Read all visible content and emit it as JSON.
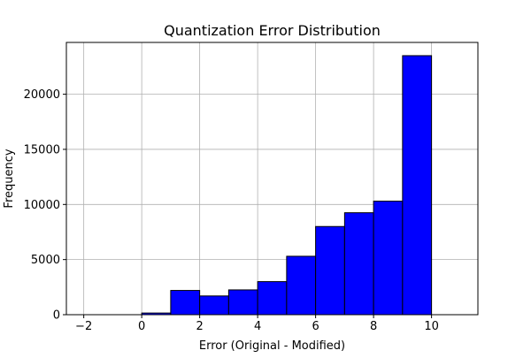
{
  "chart_data": {
    "type": "bar",
    "title": "Quantization Error Distribution",
    "xlabel": "Error (Original - Modified)",
    "ylabel": "Frequency",
    "xlim": [
      -2.6,
      11.6
    ],
    "ylim": [
      0,
      24700
    ],
    "xticks": [
      -2,
      0,
      2,
      4,
      6,
      8,
      10
    ],
    "xtick_labels": [
      "−2",
      "0",
      "2",
      "4",
      "6",
      "8",
      "10"
    ],
    "yticks": [
      0,
      5000,
      10000,
      15000,
      20000
    ],
    "ytick_labels": [
      "0",
      "5000",
      "10000",
      "15000",
      "20000"
    ],
    "grid": true,
    "bar_color": "#0000ff",
    "edge_color": "#000000",
    "bins": [
      {
        "start": -2,
        "end": -1,
        "value": 0
      },
      {
        "start": -1,
        "end": 0,
        "value": 0
      },
      {
        "start": 0,
        "end": 1,
        "value": 150
      },
      {
        "start": 1,
        "end": 2,
        "value": 2200
      },
      {
        "start": 2,
        "end": 3,
        "value": 1700
      },
      {
        "start": 3,
        "end": 4,
        "value": 2250
      },
      {
        "start": 4,
        "end": 5,
        "value": 3000
      },
      {
        "start": 5,
        "end": 6,
        "value": 5300
      },
      {
        "start": 6,
        "end": 7,
        "value": 8000
      },
      {
        "start": 7,
        "end": 8,
        "value": 9250
      },
      {
        "start": 8,
        "end": 9,
        "value": 10300
      },
      {
        "start": 9,
        "end": 10,
        "value": 23500
      },
      {
        "start": 10,
        "end": 11,
        "value": 0
      }
    ]
  }
}
